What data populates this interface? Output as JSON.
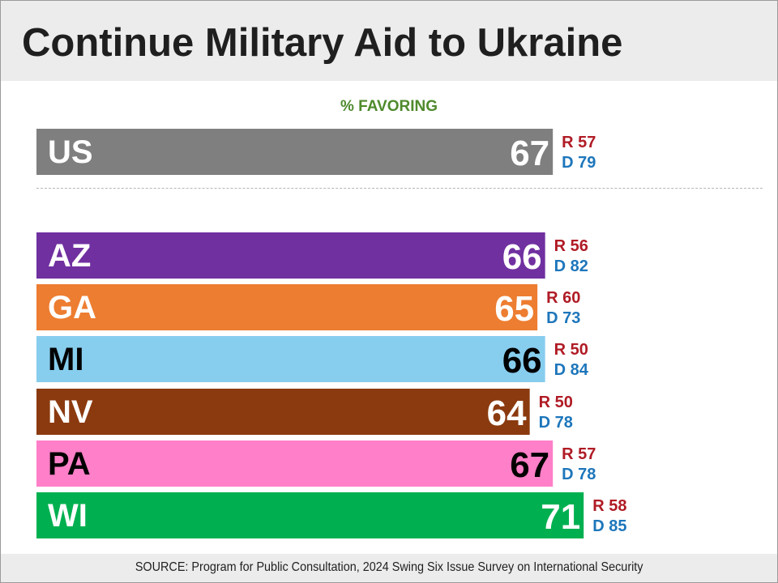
{
  "header": {
    "title": "Continue Military Aid to Ukraine"
  },
  "footer": {
    "source": "SOURCE: Program for Public Consultation, 2024 Swing Six Issue Survey on International Security"
  },
  "chart_data": {
    "type": "bar",
    "orientation": "horizontal",
    "title": "Continue Military Aid to Ukraine",
    "subtitle": "% FAVORING",
    "xlabel": "",
    "ylabel": "",
    "grid": false,
    "legend": "none",
    "categories": [
      "US",
      "AZ",
      "GA",
      "MI",
      "NV",
      "PA",
      "WI"
    ],
    "values": [
      67,
      66,
      65,
      66,
      64,
      67,
      71
    ],
    "annotations": {
      "republican": [
        "R 57",
        "R 56",
        "R 60",
        "R 50",
        "R 50",
        "R 57",
        "R 58"
      ],
      "democrat": [
        "D 79",
        "D 82",
        "D 73",
        "D 84",
        "D 78",
        "D 78",
        "D 85"
      ]
    },
    "colors": [
      "#7f7f7f",
      "#7030a0",
      "#ed7d31",
      "#87cdee",
      "#8b3a0f",
      "#ff7fc8",
      "#00b050"
    ],
    "value_text_colors": [
      "#ffffff",
      "#ffffff",
      "#ffffff",
      "#000000",
      "#ffffff",
      "#000000",
      "#ffffff"
    ],
    "label_text_colors": [
      "#ffffff",
      "#ffffff",
      "#ffffff",
      "#000000",
      "#ffffff",
      "#000000",
      "#ffffff"
    ],
    "republican_color": "#b01b25",
    "democrat_color": "#1d76bb"
  }
}
